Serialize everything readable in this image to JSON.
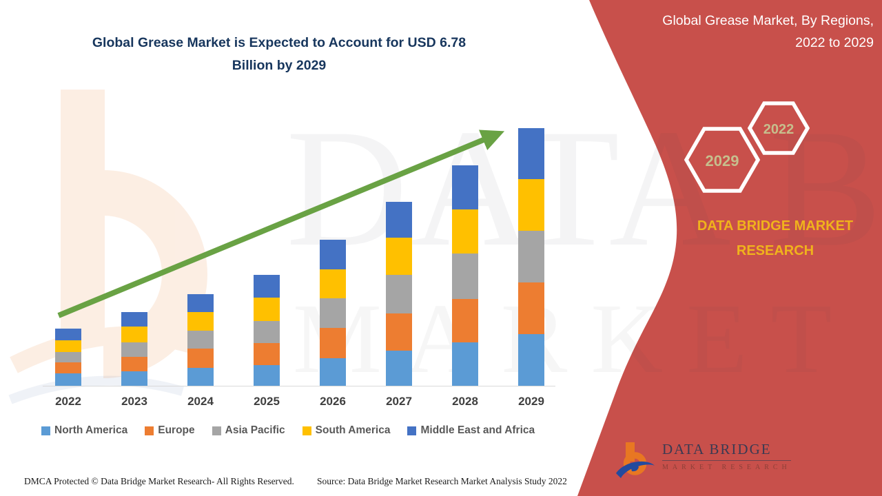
{
  "page": {
    "chart_title": "Global Grease Market is Expected to Account for USD 6.78\nBillion by 2029"
  },
  "right_panel": {
    "heading": "Global Grease Market, By Regions,\n2022 to 2029",
    "panel_color": "#C8504B",
    "hexagons": {
      "large_label": "2029",
      "small_label": "2022",
      "label_color": "#C6BE8D",
      "border_color": "#FFFFFF"
    },
    "brand_text": "DATA BRIDGE MARKET\nRESEARCH",
    "brand_text_color": "#F0B31C",
    "logo": {
      "name": "DATA BRIDGE",
      "subtitle": "MARKET RESEARCH"
    }
  },
  "chart_data": {
    "type": "bar",
    "subtype": "stacked",
    "title": "Global Grease Market is Expected to Account for USD 6.78 Billion by 2029",
    "unit": "USD Billion",
    "xlabel": "",
    "ylabel": "",
    "grid": false,
    "legend_position": "bottom",
    "categories": [
      "2022",
      "2023",
      "2024",
      "2025",
      "2026",
      "2027",
      "2028",
      "2029"
    ],
    "series": [
      {
        "name": "North America",
        "color": "#5B9BD5",
        "values": [
          0.33,
          0.38,
          0.47,
          0.55,
          0.73,
          0.93,
          1.14,
          1.35
        ]
      },
      {
        "name": "Europe",
        "color": "#ED7D31",
        "values": [
          0.28,
          0.39,
          0.5,
          0.57,
          0.8,
          0.98,
          1.15,
          1.37
        ]
      },
      {
        "name": "Asia Pacific",
        "color": "#A5A5A5",
        "values": [
          0.27,
          0.37,
          0.48,
          0.58,
          0.77,
          1.01,
          1.18,
          1.35
        ]
      },
      {
        "name": "South America",
        "color": "#FFC000",
        "values": [
          0.31,
          0.42,
          0.48,
          0.62,
          0.76,
          0.98,
          1.17,
          1.36
        ]
      },
      {
        "name": "Middle East and Africa",
        "color": "#4472C4",
        "values": [
          0.31,
          0.37,
          0.48,
          0.59,
          0.79,
          0.94,
          1.16,
          1.35
        ]
      }
    ],
    "totals": [
      1.5,
      1.93,
      2.41,
      2.91,
      3.85,
      4.84,
      5.8,
      6.78
    ],
    "annotations": [
      "upward green trend arrow from 2022 bar to 2029 bar"
    ],
    "trend_arrow_color": "#69A244",
    "axis_line_color": "#D9D9D9"
  },
  "watermark": {
    "line1": "DATA BRIDGE",
    "line2": "MARKET RESEARCH"
  },
  "footer": {
    "left": "DMCA Protected © Data Bridge  Market Research- All Rights Reserved.",
    "right": "Source: Data Bridge Market Research Market Analysis Study 2022"
  },
  "colors": {
    "title_navy": "#17365D",
    "legend_text": "#595959",
    "xlabel_gray": "#3F3F3F"
  }
}
